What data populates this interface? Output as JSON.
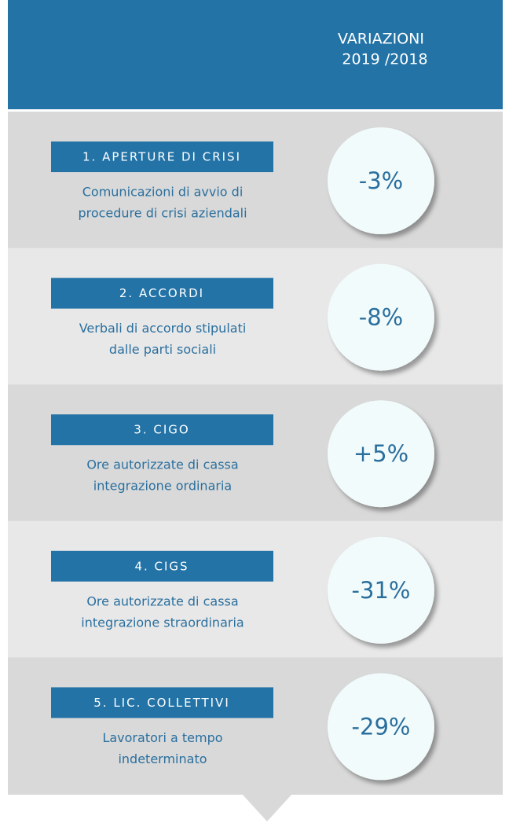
{
  "header": {
    "title": [
      "VARIAZIONI",
      "2019 /2018"
    ]
  },
  "rows": [
    {
      "label": "1. APERTURE DI CRISI",
      "description": [
        "Comunicazioni di avvio di",
        "procedure di crisi aziendali"
      ],
      "value": "-3%"
    },
    {
      "label": "2. ACCORDI",
      "description": [
        "Verbali di accordo stipulati",
        "dalle parti sociali"
      ],
      "value": "-8%"
    },
    {
      "label": "3. CIGO",
      "description": [
        "Ore autorizzate di cassa",
        "integrazione ordinaria"
      ],
      "value": "+5%"
    },
    {
      "label": "4. CIGS",
      "description": [
        "Ore autorizzate di cassa",
        "integrazione straordinaria"
      ],
      "value": "-31%"
    },
    {
      "label": "5. LIC. COLLETTIVI",
      "description": [
        "Lavoratori a tempo",
        "indeterminato"
      ],
      "value": "-29%"
    }
  ]
}
